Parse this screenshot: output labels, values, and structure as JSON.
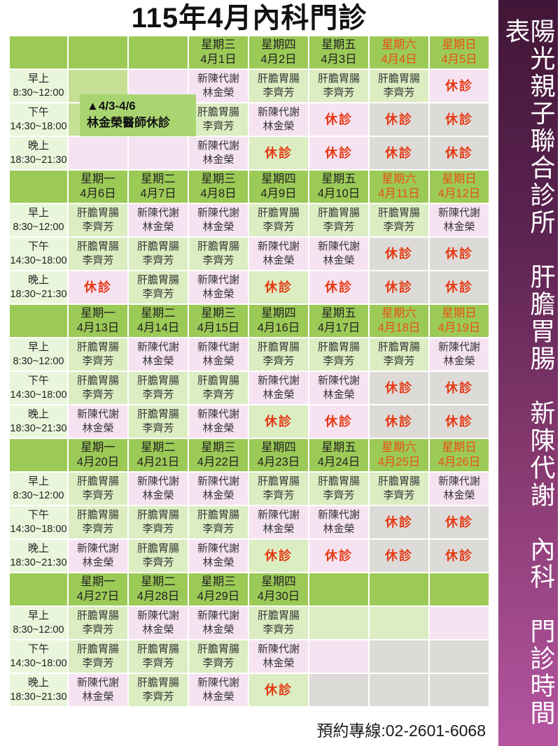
{
  "title": "115年4月內科門診",
  "sidebar": {
    "text": "陽光親子聯合診所　肝膽胃腸　新陳代謝　內科　門診時間表"
  },
  "footer": {
    "phone": "預約專線:02-2601-6068"
  },
  "annotation": {
    "line1": "▲4/3-4/6",
    "line2": "林金榮醫師休診"
  },
  "labels": {
    "closed": "休診"
  },
  "doctors": {
    "met": {
      "specialty": "新陳代謝",
      "name": "林金榮"
    },
    "gas": {
      "specialty": "肝膽胃腸",
      "name": "李齊芳"
    }
  },
  "time_slots": [
    {
      "period": "早上",
      "hours": "8:30~12:00"
    },
    {
      "period": "下午",
      "hours": "14:30~18:00"
    },
    {
      "period": "晚上",
      "hours": "18:30~21:30"
    }
  ],
  "colors": {
    "header_green": "#9cca57",
    "cell_green": "#dcedc2",
    "cell_pink": "#f6e3f2",
    "cell_gray": "#dddbd8",
    "cell_medgreen": "#c6e096",
    "time_col": "#e9f6dc",
    "closed_red": "#e63914",
    "weekend_red": "#e8520f",
    "annotation_green": "#a9d571",
    "sidebar_top": "#421637",
    "sidebar_bottom": "#b455a1"
  },
  "weeks": [
    {
      "days": [
        {
          "weekday": "",
          "date": "",
          "weekend": false,
          "slots": [
            {
              "t": "",
              "bg": "mg"
            },
            {
              "t": "",
              "bg": "mg"
            },
            {
              "t": "",
              "bg": "p"
            }
          ]
        },
        {
          "weekday": "",
          "date": "",
          "weekend": false,
          "slots": [
            {
              "t": "",
              "bg": "p"
            },
            {
              "t": "",
              "bg": "mg"
            },
            {
              "t": "",
              "bg": "p"
            }
          ]
        },
        {
          "weekday": "星期三",
          "date": "4月1日",
          "weekend": false,
          "slots": [
            {
              "t": "met",
              "bg": "p"
            },
            {
              "t": "gas",
              "bg": "g"
            },
            {
              "t": "met",
              "bg": "p"
            }
          ]
        },
        {
          "weekday": "星期四",
          "date": "4月2日",
          "weekend": false,
          "slots": [
            {
              "t": "gas",
              "bg": "g"
            },
            {
              "t": "met",
              "bg": "p"
            },
            {
              "t": "x",
              "bg": "g"
            }
          ]
        },
        {
          "weekday": "星期五",
          "date": "4月3日",
          "weekend": false,
          "slots": [
            {
              "t": "gas",
              "bg": "g"
            },
            {
              "t": "x",
              "bg": "p"
            },
            {
              "t": "x",
              "bg": "p"
            }
          ]
        },
        {
          "weekday": "星期六",
          "date": "4月4日",
          "weekend": true,
          "slots": [
            {
              "t": "gas",
              "bg": "g"
            },
            {
              "t": "x",
              "bg": "gr"
            },
            {
              "t": "x",
              "bg": "gr"
            }
          ]
        },
        {
          "weekday": "星期日",
          "date": "4月5日",
          "weekend": true,
          "slots": [
            {
              "t": "x",
              "bg": "p"
            },
            {
              "t": "x",
              "bg": "gr"
            },
            {
              "t": "x",
              "bg": "gr"
            }
          ]
        }
      ]
    },
    {
      "days": [
        {
          "weekday": "星期一",
          "date": "4月6日",
          "weekend": false,
          "slots": [
            {
              "t": "gas",
              "bg": "g"
            },
            {
              "t": "gas",
              "bg": "g"
            },
            {
              "t": "x",
              "bg": "p"
            }
          ]
        },
        {
          "weekday": "星期二",
          "date": "4月7日",
          "weekend": false,
          "slots": [
            {
              "t": "met",
              "bg": "p"
            },
            {
              "t": "gas",
              "bg": "g"
            },
            {
              "t": "gas",
              "bg": "g"
            }
          ]
        },
        {
          "weekday": "星期三",
          "date": "4月8日",
          "weekend": false,
          "slots": [
            {
              "t": "met",
              "bg": "p"
            },
            {
              "t": "gas",
              "bg": "g"
            },
            {
              "t": "met",
              "bg": "p"
            }
          ]
        },
        {
          "weekday": "星期四",
          "date": "4月9日",
          "weekend": false,
          "slots": [
            {
              "t": "gas",
              "bg": "g"
            },
            {
              "t": "met",
              "bg": "p"
            },
            {
              "t": "x",
              "bg": "g"
            }
          ]
        },
        {
          "weekday": "星期五",
          "date": "4月10日",
          "weekend": false,
          "slots": [
            {
              "t": "gas",
              "bg": "g"
            },
            {
              "t": "met",
              "bg": "p"
            },
            {
              "t": "x",
              "bg": "p"
            }
          ]
        },
        {
          "weekday": "星期六",
          "date": "4月11日",
          "weekend": true,
          "slots": [
            {
              "t": "gas",
              "bg": "g"
            },
            {
              "t": "x",
              "bg": "gr"
            },
            {
              "t": "x",
              "bg": "gr"
            }
          ]
        },
        {
          "weekday": "星期日",
          "date": "4月12日",
          "weekend": true,
          "slots": [
            {
              "t": "met",
              "bg": "p"
            },
            {
              "t": "x",
              "bg": "gr"
            },
            {
              "t": "x",
              "bg": "gr"
            }
          ]
        }
      ]
    },
    {
      "days": [
        {
          "weekday": "星期一",
          "date": "4月13日",
          "weekend": false,
          "slots": [
            {
              "t": "gas",
              "bg": "g"
            },
            {
              "t": "gas",
              "bg": "g"
            },
            {
              "t": "met",
              "bg": "p"
            }
          ]
        },
        {
          "weekday": "星期二",
          "date": "4月14日",
          "weekend": false,
          "slots": [
            {
              "t": "met",
              "bg": "p"
            },
            {
              "t": "gas",
              "bg": "g"
            },
            {
              "t": "gas",
              "bg": "g"
            }
          ]
        },
        {
          "weekday": "星期三",
          "date": "4月15日",
          "weekend": false,
          "slots": [
            {
              "t": "met",
              "bg": "p"
            },
            {
              "t": "gas",
              "bg": "g"
            },
            {
              "t": "met",
              "bg": "p"
            }
          ]
        },
        {
          "weekday": "星期四",
          "date": "4月16日",
          "weekend": false,
          "slots": [
            {
              "t": "gas",
              "bg": "g"
            },
            {
              "t": "met",
              "bg": "p"
            },
            {
              "t": "x",
              "bg": "g"
            }
          ]
        },
        {
          "weekday": "星期五",
          "date": "4月17日",
          "weekend": false,
          "slots": [
            {
              "t": "gas",
              "bg": "g"
            },
            {
              "t": "met",
              "bg": "p"
            },
            {
              "t": "x",
              "bg": "p"
            }
          ]
        },
        {
          "weekday": "星期六",
          "date": "4月18日",
          "weekend": true,
          "slots": [
            {
              "t": "gas",
              "bg": "g"
            },
            {
              "t": "x",
              "bg": "gr"
            },
            {
              "t": "x",
              "bg": "gr"
            }
          ]
        },
        {
          "weekday": "星期日",
          "date": "4月19日",
          "weekend": true,
          "slots": [
            {
              "t": "met",
              "bg": "p"
            },
            {
              "t": "x",
              "bg": "gr"
            },
            {
              "t": "x",
              "bg": "gr"
            }
          ]
        }
      ]
    },
    {
      "days": [
        {
          "weekday": "星期一",
          "date": "4月20日",
          "weekend": false,
          "slots": [
            {
              "t": "gas",
              "bg": "g"
            },
            {
              "t": "gas",
              "bg": "g"
            },
            {
              "t": "met",
              "bg": "p"
            }
          ]
        },
        {
          "weekday": "星期二",
          "date": "4月21日",
          "weekend": false,
          "slots": [
            {
              "t": "met",
              "bg": "p"
            },
            {
              "t": "gas",
              "bg": "g"
            },
            {
              "t": "gas",
              "bg": "g"
            }
          ]
        },
        {
          "weekday": "星期三",
          "date": "4月22日",
          "weekend": false,
          "slots": [
            {
              "t": "met",
              "bg": "p"
            },
            {
              "t": "gas",
              "bg": "g"
            },
            {
              "t": "met",
              "bg": "p"
            }
          ]
        },
        {
          "weekday": "星期四",
          "date": "4月23日",
          "weekend": false,
          "slots": [
            {
              "t": "gas",
              "bg": "g"
            },
            {
              "t": "met",
              "bg": "p"
            },
            {
              "t": "x",
              "bg": "g"
            }
          ]
        },
        {
          "weekday": "星期五",
          "date": "4月24日",
          "weekend": false,
          "slots": [
            {
              "t": "gas",
              "bg": "g"
            },
            {
              "t": "met",
              "bg": "p"
            },
            {
              "t": "x",
              "bg": "p"
            }
          ]
        },
        {
          "weekday": "星期六",
          "date": "4月25日",
          "weekend": true,
          "slots": [
            {
              "t": "gas",
              "bg": "g"
            },
            {
              "t": "x",
              "bg": "gr"
            },
            {
              "t": "x",
              "bg": "gr"
            }
          ]
        },
        {
          "weekday": "星期日",
          "date": "4月26日",
          "weekend": true,
          "slots": [
            {
              "t": "met",
              "bg": "p"
            },
            {
              "t": "x",
              "bg": "gr"
            },
            {
              "t": "x",
              "bg": "gr"
            }
          ]
        }
      ]
    },
    {
      "days": [
        {
          "weekday": "星期一",
          "date": "4月27日",
          "weekend": false,
          "slots": [
            {
              "t": "gas",
              "bg": "g"
            },
            {
              "t": "gas",
              "bg": "g"
            },
            {
              "t": "met",
              "bg": "p"
            }
          ]
        },
        {
          "weekday": "星期二",
          "date": "4月28日",
          "weekend": false,
          "slots": [
            {
              "t": "met",
              "bg": "p"
            },
            {
              "t": "gas",
              "bg": "g"
            },
            {
              "t": "gas",
              "bg": "g"
            }
          ]
        },
        {
          "weekday": "星期三",
          "date": "4月29日",
          "weekend": false,
          "slots": [
            {
              "t": "met",
              "bg": "p"
            },
            {
              "t": "gas",
              "bg": "g"
            },
            {
              "t": "met",
              "bg": "p"
            }
          ]
        },
        {
          "weekday": "星期四",
          "date": "4月30日",
          "weekend": false,
          "slots": [
            {
              "t": "gas",
              "bg": "g"
            },
            {
              "t": "met",
              "bg": "p"
            },
            {
              "t": "x",
              "bg": "g"
            }
          ]
        },
        {
          "weekday": "",
          "date": "",
          "weekend": false,
          "slots": [
            {
              "t": "",
              "bg": "g"
            },
            {
              "t": "",
              "bg": "p"
            },
            {
              "t": "",
              "bg": "gr"
            }
          ]
        },
        {
          "weekday": "",
          "date": "",
          "weekend": false,
          "slots": [
            {
              "t": "",
              "bg": "g"
            },
            {
              "t": "",
              "bg": "gr"
            },
            {
              "t": "",
              "bg": "gr"
            }
          ]
        },
        {
          "weekday": "",
          "date": "",
          "weekend": false,
          "slots": [
            {
              "t": "",
              "bg": "p"
            },
            {
              "t": "",
              "bg": "gr"
            },
            {
              "t": "",
              "bg": "gr"
            }
          ]
        }
      ]
    }
  ]
}
